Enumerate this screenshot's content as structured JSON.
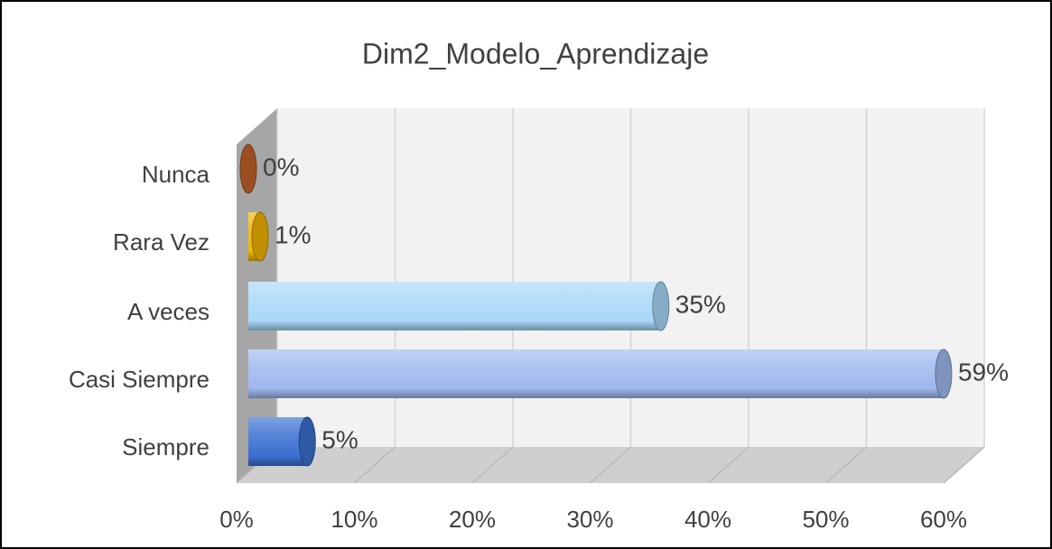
{
  "chart_data": {
    "type": "bar",
    "orientation": "horizontal",
    "title": "Dim2_Modelo_Aprendizaje",
    "categories": [
      "Nunca",
      "Rara Vez",
      "A veces",
      "Casi Siempre",
      "Siempre"
    ],
    "values": [
      0,
      1,
      35,
      59,
      5
    ],
    "value_labels": [
      "0%",
      "1%",
      "35%",
      "59%",
      "5%"
    ],
    "colors": [
      "#c0622a",
      "#f0b400",
      "#a8d8f8",
      "#9fb8ef",
      "#3a6fd0"
    ],
    "xlim": [
      0,
      60
    ],
    "xticks": [
      {
        "value": 0,
        "label": "0%"
      },
      {
        "value": 10,
        "label": "10%"
      },
      {
        "value": 20,
        "label": "20%"
      },
      {
        "value": 30,
        "label": "30%"
      },
      {
        "value": 40,
        "label": "40%"
      },
      {
        "value": 50,
        "label": "50%"
      },
      {
        "value": 60,
        "label": "60%"
      }
    ],
    "grid": true
  }
}
